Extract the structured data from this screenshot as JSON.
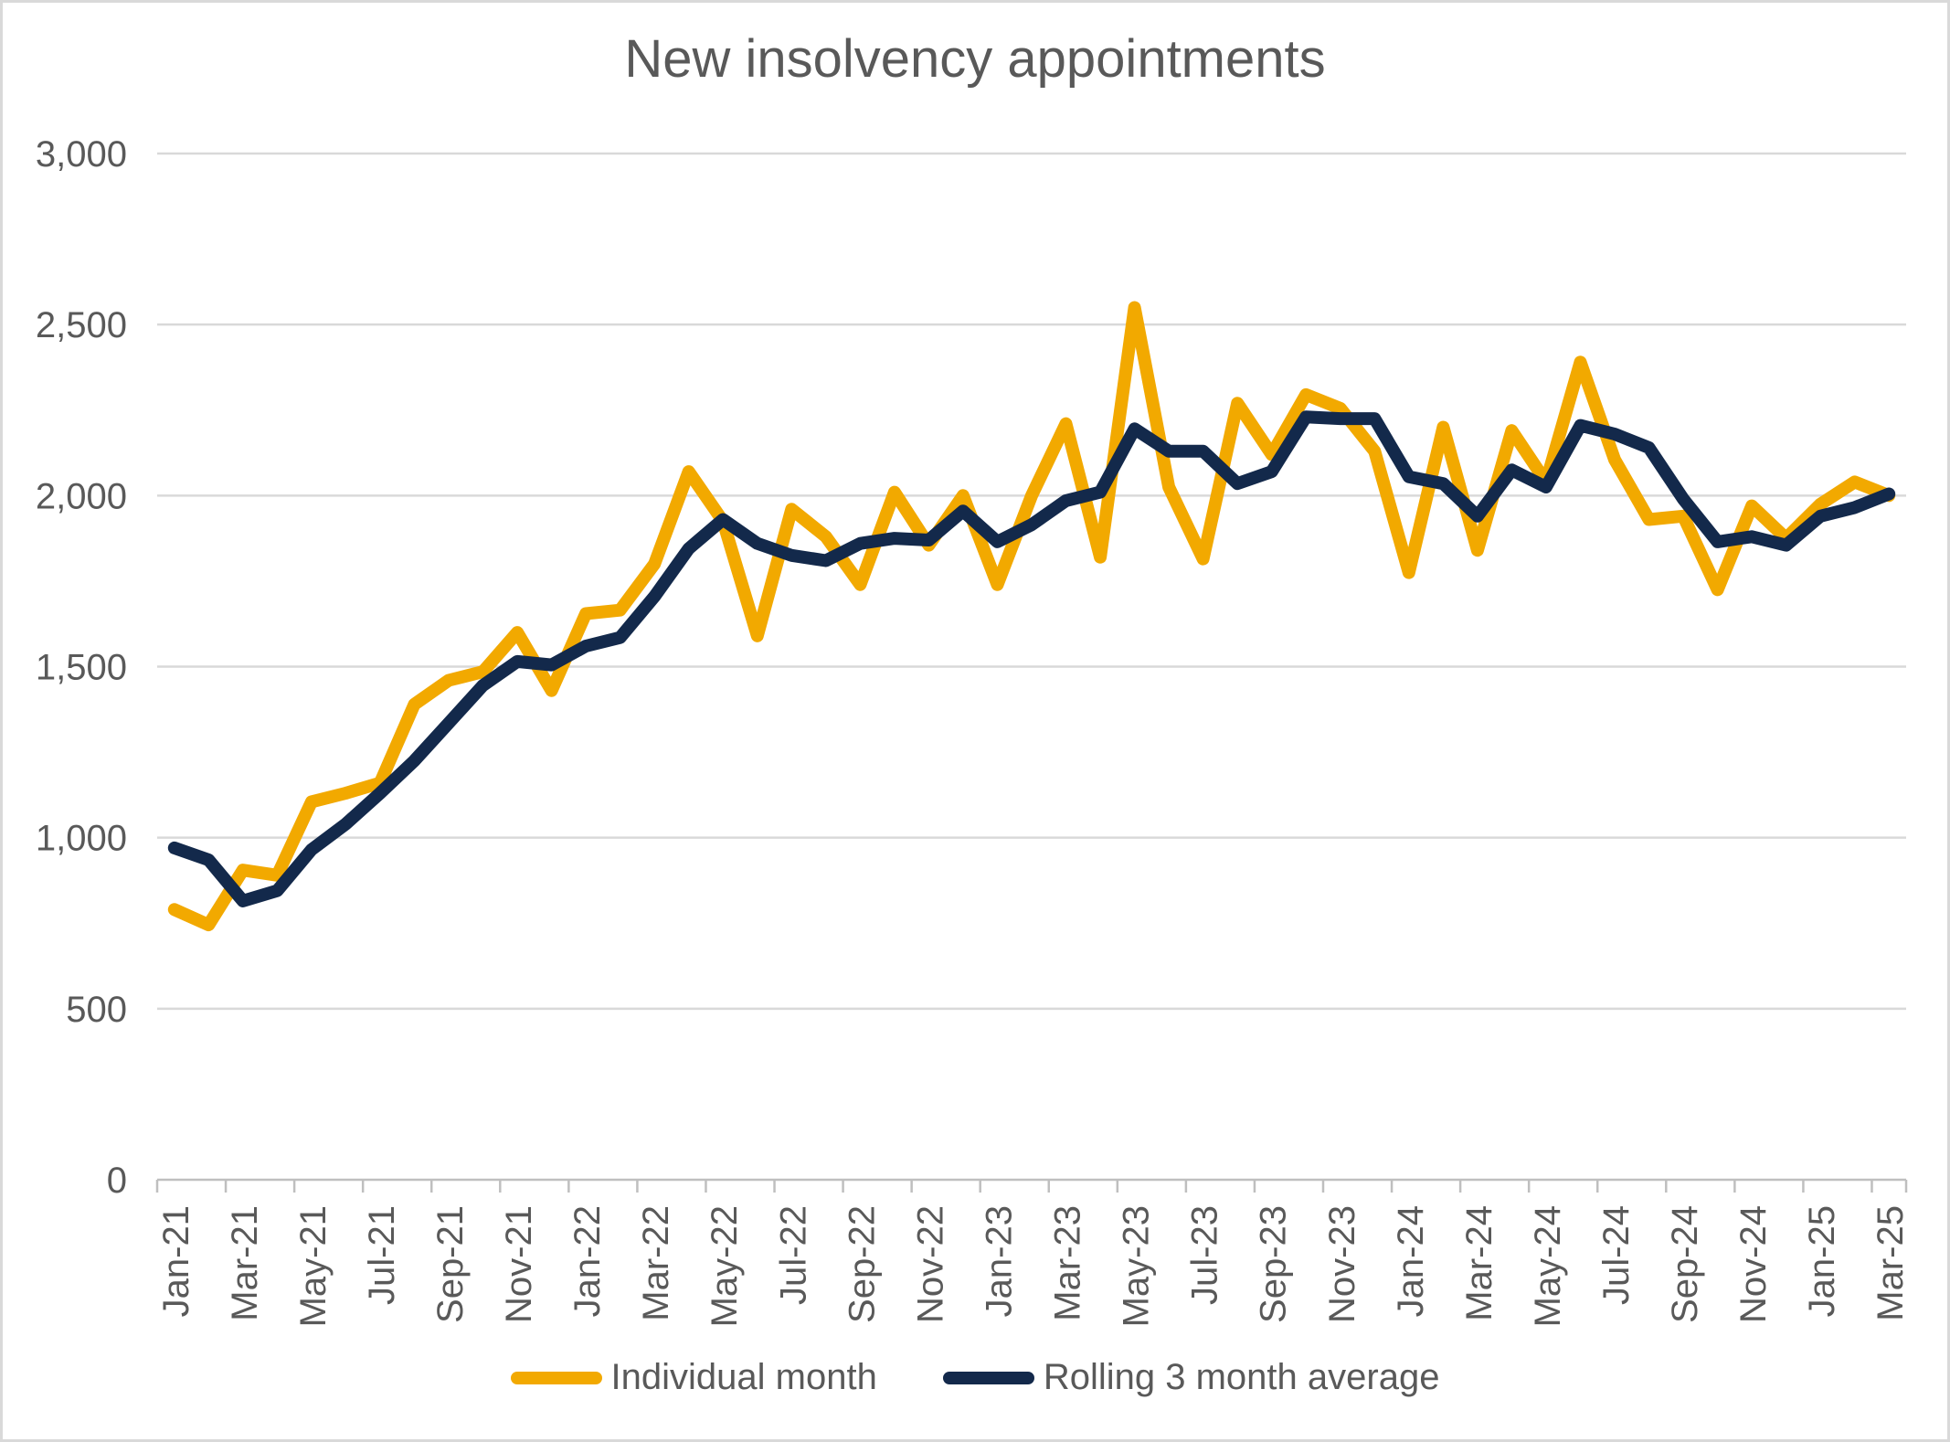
{
  "chart_data": {
    "type": "line",
    "title": "New insolvency appointments",
    "xlabel": "",
    "ylabel": "",
    "ylim": [
      0,
      3000
    ],
    "y_tick_step": 500,
    "y_tick_labels": [
      "0",
      "500",
      "1,000",
      "1,500",
      "2,000",
      "2,500",
      "3,000"
    ],
    "grid": "horizontal",
    "legend_position": "bottom",
    "x_label_every": 2,
    "categories": [
      "Jan-21",
      "Feb-21",
      "Mar-21",
      "Apr-21",
      "May-21",
      "Jun-21",
      "Jul-21",
      "Aug-21",
      "Sep-21",
      "Oct-21",
      "Nov-21",
      "Dec-21",
      "Jan-22",
      "Feb-22",
      "Mar-22",
      "Apr-22",
      "May-22",
      "Jun-22",
      "Jul-22",
      "Aug-22",
      "Sep-22",
      "Oct-22",
      "Nov-22",
      "Dec-22",
      "Jan-23",
      "Feb-23",
      "Mar-23",
      "Apr-23",
      "May-23",
      "Jun-23",
      "Jul-23",
      "Aug-23",
      "Sep-23",
      "Oct-23",
      "Nov-23",
      "Dec-23",
      "Jan-24",
      "Feb-24",
      "Mar-24",
      "Apr-24",
      "May-24",
      "Jun-24",
      "Jul-24",
      "Aug-24",
      "Sep-24",
      "Oct-24",
      "Nov-24",
      "Dec-24",
      "Jan-25",
      "Feb-25",
      "Mar-25"
    ],
    "series": [
      {
        "name": "Individual month",
        "color": "#F2A900",
        "values": [
          790,
          745,
          905,
          890,
          1105,
          1130,
          1160,
          1390,
          1460,
          1485,
          1600,
          1430,
          1655,
          1665,
          1800,
          2070,
          1925,
          1590,
          1960,
          1880,
          1740,
          2010,
          1855,
          2000,
          1740,
          2000,
          2210,
          1820,
          2550,
          2025,
          1815,
          2270,
          2120,
          2295,
          2255,
          2130,
          1775,
          2200,
          1840,
          2190,
          2040,
          2390,
          2105,
          1930,
          1940,
          1725,
          1970,
          1875,
          1975,
          2040,
          2000
        ]
      },
      {
        "name": "Rolling 3 month average",
        "color": "#13294B",
        "values": [
          970,
          935,
          815,
          845,
          965,
          1040,
          1130,
          1225,
          1335,
          1445,
          1515,
          1505,
          1560,
          1585,
          1705,
          1845,
          1930,
          1860,
          1825,
          1810,
          1860,
          1875,
          1870,
          1955,
          1865,
          1915,
          1985,
          2010,
          2195,
          2130,
          2130,
          2035,
          2070,
          2230,
          2225,
          2225,
          2055,
          2035,
          1940,
          2075,
          2025,
          2205,
          2180,
          2140,
          1990,
          1865,
          1880,
          1855,
          1940,
          1965,
          2005
        ]
      }
    ]
  },
  "colors": {
    "background": "#FFFFFF",
    "border": "#D9D9D9",
    "gridline": "#D9D9D9",
    "axis_line": "#BFBFBF",
    "text": "#595959",
    "title_text": "#595959"
  }
}
